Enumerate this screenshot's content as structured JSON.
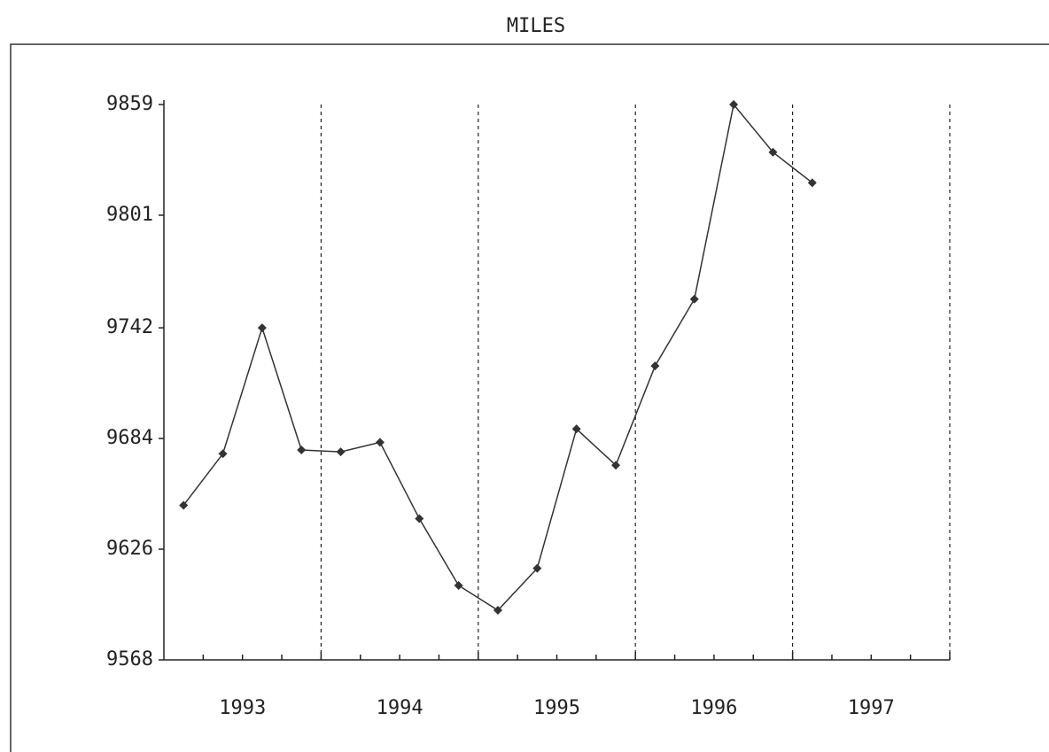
{
  "chart_data": {
    "type": "line",
    "title": "MILES",
    "categories": [
      null,
      null,
      null,
      null,
      null,
      null,
      null,
      null,
      null,
      null,
      null,
      null,
      null,
      null,
      null,
      null,
      null
    ],
    "year_labels": [
      "1993",
      "1994",
      "1995",
      "1996",
      "1997"
    ],
    "series": [
      {
        "name": null,
        "color": "#333333",
        "values": [
          9649,
          9676,
          9742,
          9678,
          9677,
          9682,
          9642,
          9607,
          9594,
          9616,
          9689,
          9670,
          9722,
          9757,
          9859,
          9834,
          9818
        ]
      }
    ],
    "ylim": [
      9568,
      9859
    ],
    "yticks": [
      9568,
      9626,
      9684,
      9742,
      9801,
      9859
    ],
    "grid": true
  }
}
